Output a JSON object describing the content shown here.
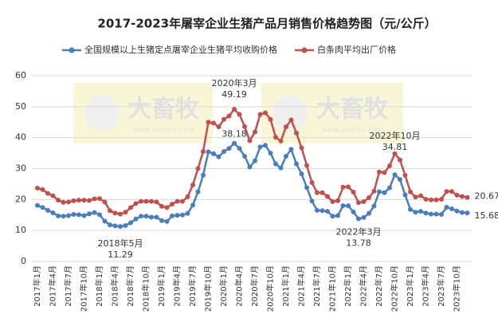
{
  "chart_data": {
    "type": "line",
    "title": "2017-2023年屠宰企业生猪产品月销售价格趋势图（元/公斤）",
    "watermark": "大畜牧",
    "watermark_url": "www.dxumu.com",
    "categories": [
      "2017年1月",
      null,
      null,
      "2017年4月",
      null,
      null,
      "2017年7月",
      null,
      null,
      "2017年10月",
      null,
      null,
      "2018年1月",
      null,
      null,
      "2018年4月",
      null,
      null,
      "2018年7月",
      null,
      null,
      "2018年10月",
      null,
      null,
      "2019年1月",
      null,
      null,
      "2019年4月",
      null,
      null,
      "2019年7月",
      null,
      null,
      "2019年10月",
      null,
      null,
      "2020年1月",
      null,
      null,
      "2020年4月",
      null,
      null,
      "2020年7月",
      null,
      null,
      "2020年10月",
      null,
      null,
      "2021年1月",
      null,
      null,
      "2021年4月",
      null,
      null,
      "2021年7月",
      null,
      null,
      "2021年10月",
      null,
      null,
      "2022年1月",
      null,
      null,
      "2022年4月",
      null,
      null,
      "2022年7月",
      null,
      null,
      "2022年10月",
      null,
      null,
      "2023年1月",
      null,
      null,
      "2023年4月",
      null,
      null,
      "2023年7月",
      null,
      null,
      "2023年10月",
      null,
      null
    ],
    "series": [
      {
        "name": "全国规模以上生猪定点屠宰企业生猪平均收购价格",
        "color": "#4a7ebb",
        "values": [
          18.1,
          17.4,
          16.5,
          15.7,
          14.7,
          14.6,
          14.8,
          15.2,
          15.1,
          14.8,
          15.4,
          15.8,
          15.1,
          13.0,
          11.8,
          11.5,
          11.29,
          11.6,
          12.5,
          13.7,
          14.6,
          14.6,
          14.3,
          14.3,
          13.2,
          12.9,
          14.7,
          14.9,
          15.0,
          15.5,
          18.2,
          22.5,
          27.9,
          35.4,
          34.8,
          33.8,
          35.5,
          36.5,
          38.18,
          36.5,
          34.0,
          30.5,
          32.5,
          37.0,
          37.5,
          35.0,
          31.5,
          30.2,
          34.0,
          36.2,
          31.5,
          28.3,
          23.9,
          19.5,
          16.5,
          16.4,
          16.2,
          14.6,
          14.8,
          18.0,
          18.0,
          16.0,
          13.78,
          14.2,
          15.5,
          17.9,
          22.5,
          22.2,
          23.8,
          28.0,
          26.5,
          21.5,
          16.8,
          15.9,
          16.2,
          15.6,
          15.3,
          15.3,
          15.2,
          17.5,
          17.0,
          16.3,
          15.8,
          15.68
        ]
      },
      {
        "name": "白条肉平均出厂价格",
        "color": "#c0504d",
        "values": [
          23.7,
          23.2,
          22.0,
          21.2,
          19.8,
          19.1,
          19.2,
          19.6,
          19.8,
          19.8,
          19.7,
          20.2,
          20.3,
          19.2,
          16.4,
          15.6,
          15.3,
          15.9,
          17.4,
          18.7,
          19.4,
          19.4,
          19.4,
          19.2,
          17.8,
          17.4,
          18.5,
          19.4,
          19.4,
          20.9,
          24.7,
          30.0,
          35.5,
          45.0,
          44.7,
          43.5,
          45.9,
          47.0,
          49.19,
          47.5,
          43.6,
          39.0,
          41.8,
          47.5,
          48.0,
          45.9,
          40.1,
          38.9,
          43.5,
          45.7,
          41.5,
          36.7,
          31.0,
          25.5,
          22.2,
          22.2,
          21.0,
          19.3,
          19.6,
          24.0,
          24.1,
          22.4,
          19.0,
          19.3,
          20.6,
          22.7,
          28.9,
          28.7,
          30.9,
          34.81,
          32.8,
          27.8,
          22.5,
          20.8,
          21.2,
          20.1,
          19.9,
          19.9,
          20.1,
          22.6,
          22.6,
          21.4,
          21.0,
          20.67
        ]
      }
    ],
    "annotations": [
      "2018年5月",
      "2020年3月",
      "2022年3月",
      "2022年10月"
    ],
    "ylim": [
      0,
      60
    ],
    "yticks": [
      0,
      10,
      20,
      30,
      40,
      50,
      60
    ],
    "grid": true
  }
}
